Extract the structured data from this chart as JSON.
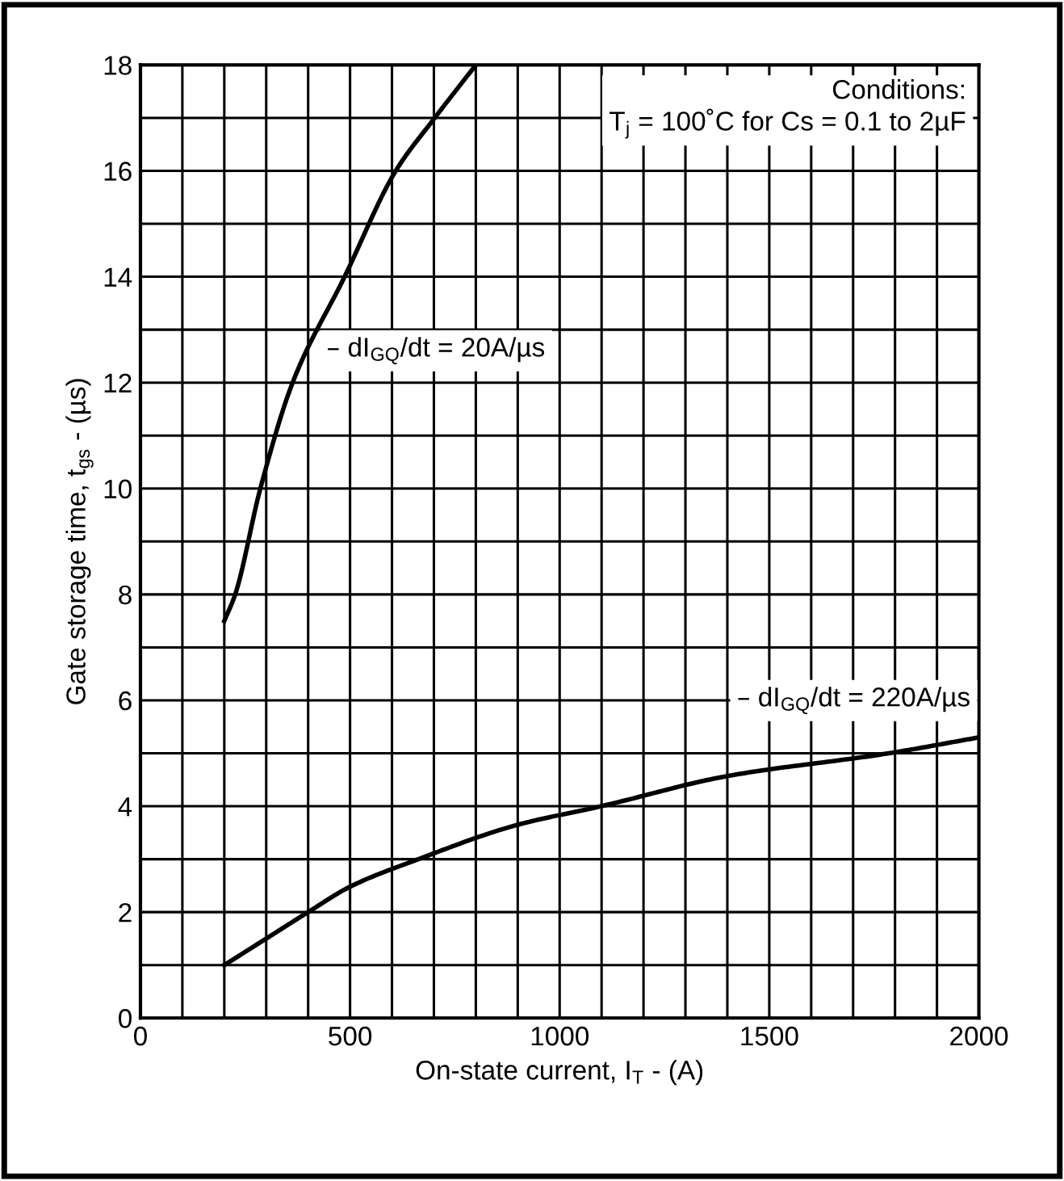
{
  "chart_data": {
    "type": "line",
    "xlabel": "On-state current, I$_{T}$ - (A)",
    "ylabel": "Gate storage time, t$_{gs}$ - (µs)",
    "series": [
      {
        "color": "#000000",
        "x": [
          200,
          226,
          286,
          363,
          487,
          609,
          702,
          800
        ],
        "values": [
          7.5,
          8,
          10,
          12,
          14,
          16,
          17,
          18
        ]
      },
      {
        "color": "#000000",
        "x": [
          200,
          300,
          400,
          500,
          663,
          900,
          1099,
          1400,
          1785,
          2000
        ],
        "values": [
          1,
          1.5,
          2,
          2.48,
          3,
          3.65,
          4,
          4.57,
          5,
          5.3
        ]
      }
    ],
    "xlim": [
      0,
      2000
    ],
    "ylim": [
      0,
      18
    ],
    "xticks": [
      0,
      {
        "value": 100,
        "label": null
      },
      {
        "value": 200,
        "label": null
      },
      {
        "value": 300,
        "label": null
      },
      {
        "value": 400,
        "label": null
      },
      500,
      {
        "value": 600,
        "label": null
      },
      {
        "value": 700,
        "label": null
      },
      {
        "value": 800,
        "label": null
      },
      {
        "value": 900,
        "label": null
      },
      1000,
      {
        "value": 1100,
        "label": null
      },
      {
        "value": 1200,
        "label": null
      },
      {
        "value": 1300,
        "label": null
      },
      {
        "value": 1400,
        "label": null
      },
      1500,
      {
        "value": 1600,
        "label": null
      },
      {
        "value": 1700,
        "label": null
      },
      {
        "value": 1800,
        "label": null
      },
      {
        "value": 1900,
        "label": null
      },
      2000
    ],
    "yticks": [
      0,
      {
        "value": 1,
        "label": null
      },
      2,
      {
        "value": 3,
        "label": null
      },
      4,
      {
        "value": 5,
        "label": null
      },
      6,
      {
        "value": 7,
        "label": null
      },
      8,
      {
        "value": 9,
        "label": null
      },
      10,
      {
        "value": 11,
        "label": null
      },
      12,
      {
        "value": 13,
        "label": null
      },
      14,
      {
        "value": 15,
        "label": null
      },
      16,
      {
        "value": 17,
        "label": null
      },
      18
    ],
    "grid": true,
    "legend": false,
    "marker": "none",
    "line_style": "solid",
    "annotations": [
      "– dI$_{GQ}$/dt = 20A/µs",
      "– dI$_{GQ}$/dt = 220A/µs",
      "Conditions:\nT$_{j}$ = 100˚C for Cs = 0.1 to 2µF"
    ]
  }
}
